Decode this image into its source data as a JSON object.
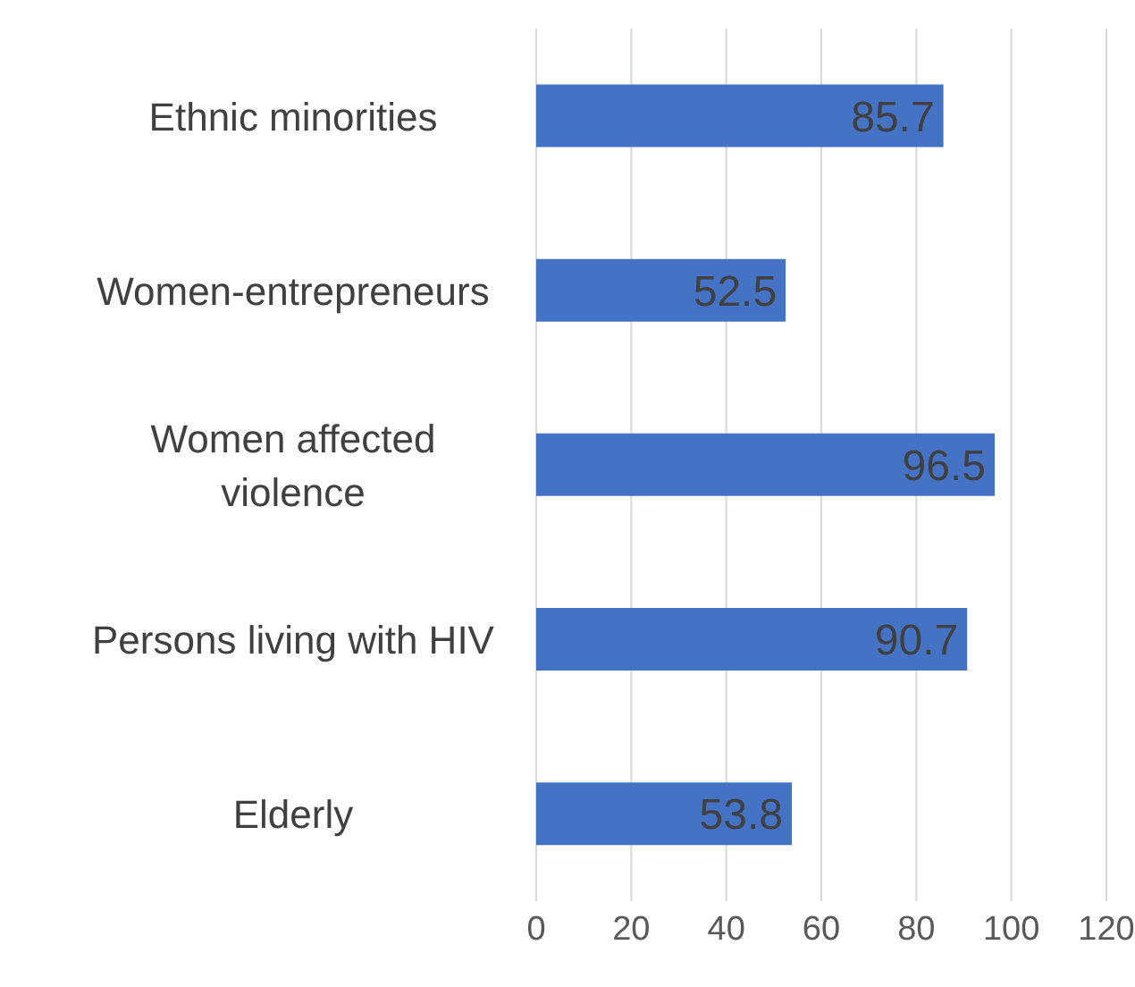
{
  "chart_data": {
    "type": "bar",
    "orientation": "horizontal",
    "categories": [
      "Ethnic minorities",
      "Women-entrepreneurs",
      "Women affected violence",
      "Persons living with HIV",
      "Elderly"
    ],
    "values": [
      85.7,
      52.5,
      96.5,
      90.7,
      53.8
    ],
    "color": "#4472c4",
    "xlim": [
      0,
      120
    ],
    "xticks": [
      0,
      20,
      40,
      60,
      80,
      100,
      120
    ],
    "grid": "x",
    "data_labels": true
  }
}
